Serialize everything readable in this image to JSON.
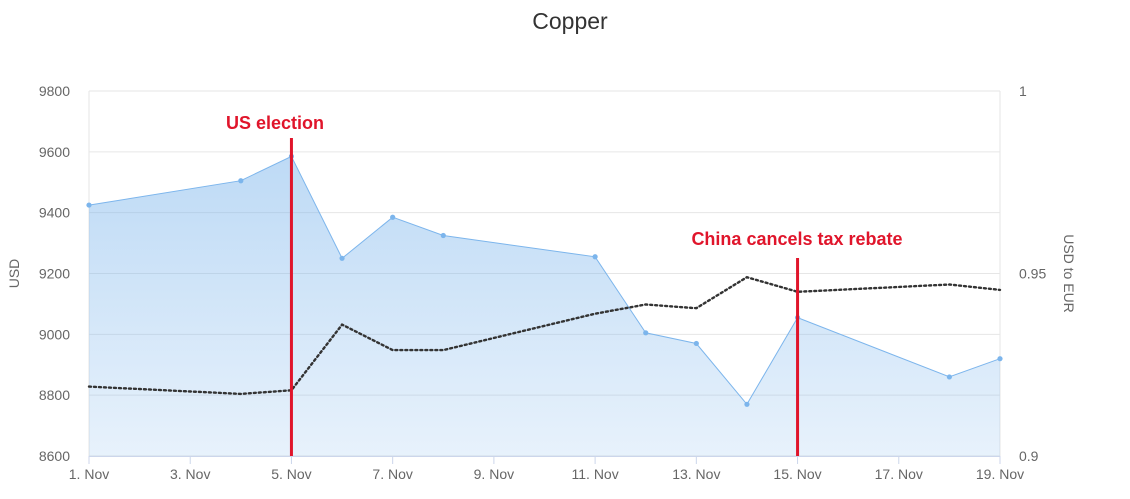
{
  "chart_data": {
    "type": "area",
    "title": "Copper",
    "xlabel": "",
    "ylabel": "USD",
    "ylabel_right": "USD to EUR",
    "ylim": [
      8600,
      9800
    ],
    "ylim_right": [
      0.9,
      1.0
    ],
    "x_ticks": [
      "1. Nov",
      "3. Nov",
      "5. Nov",
      "7. Nov",
      "9. Nov",
      "11. Nov",
      "13. Nov",
      "15. Nov",
      "17. Nov",
      "19. Nov"
    ],
    "y_ticks": [
      "8600",
      "8800",
      "9000",
      "9200",
      "9400",
      "9600",
      "9800"
    ],
    "y_ticks_right": [
      "0.9",
      "0.95",
      "1"
    ],
    "grid": true,
    "legend": "none",
    "series": [
      {
        "axis": "left",
        "style": "area",
        "color": "#7cb5ec",
        "x": [
          1,
          4,
          5,
          6,
          7,
          8,
          11,
          12,
          13,
          14,
          15,
          18,
          19
        ],
        "y": [
          9425,
          9505,
          9585,
          9250,
          9385,
          9325,
          9255,
          9005,
          8970,
          8770,
          9055,
          8860,
          8920
        ]
      },
      {
        "axis": "right",
        "style": "dotted-line",
        "color": "#333333",
        "x": [
          1,
          4,
          5,
          6,
          7,
          8,
          11,
          12,
          13,
          14,
          15,
          18,
          19
        ],
        "y": [
          0.919,
          0.917,
          0.918,
          0.936,
          0.929,
          0.929,
          0.939,
          0.9415,
          0.9405,
          0.949,
          0.945,
          0.947,
          0.9455
        ]
      }
    ],
    "annotations": [
      {
        "x": 5,
        "label": "US election",
        "color": "#e0152b"
      },
      {
        "x": 15,
        "label": "China cancels tax rebate",
        "color": "#e0152b"
      }
    ]
  }
}
